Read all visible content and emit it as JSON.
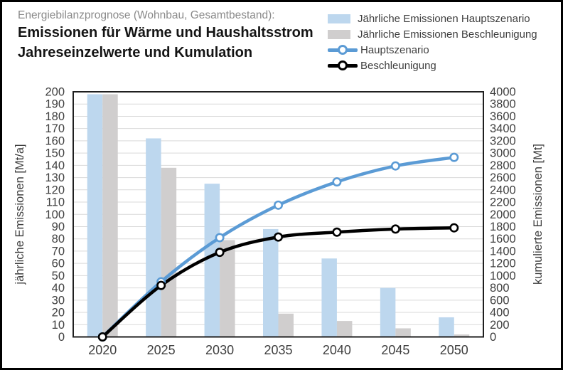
{
  "header": {
    "pretitle": "Energiebilanzprognose (Wohnbau, Gesamtbestand):",
    "title_line1": "Emissionen für Wärme und Haushaltsstrom",
    "title_line2": "Jahreseinzelwerte und Kumulation"
  },
  "legend": {
    "items": [
      {
        "type": "bar",
        "color": "#BDD7EE",
        "label": "Jährliche Emissionen Hauptszenario"
      },
      {
        "type": "bar",
        "color": "#D0CECE",
        "label": "Jährliche Emissionen Beschleunigung"
      },
      {
        "type": "line",
        "color": "#5B9BD5",
        "label": "Hauptszenario"
      },
      {
        "type": "line",
        "color": "#000000",
        "label": "Beschleunigung"
      }
    ]
  },
  "chart_data": {
    "type": "combo-bar-line",
    "categories": [
      "2020",
      "2025",
      "2030",
      "2035",
      "2040",
      "2045",
      "2050"
    ],
    "series": [
      {
        "name": "Jährliche Emissionen Hauptszenario",
        "type": "bar",
        "axis": "left",
        "color": "#BDD7EE",
        "values": [
          198,
          162,
          125,
          88,
          64,
          40,
          16
        ]
      },
      {
        "name": "Jährliche Emissionen Beschleunigung",
        "type": "bar",
        "axis": "left",
        "color": "#D0CECE",
        "values": [
          198,
          138,
          79,
          19,
          13,
          7,
          2
        ]
      },
      {
        "name": "Hauptszenario",
        "type": "line",
        "axis": "right",
        "color": "#5B9BD5",
        "values": [
          0,
          900,
          1620,
          2150,
          2530,
          2790,
          2930
        ]
      },
      {
        "name": "Beschleunigung",
        "type": "line",
        "axis": "right",
        "color": "#000000",
        "values": [
          0,
          840,
          1380,
          1630,
          1710,
          1760,
          1780
        ]
      }
    ],
    "left_axis": {
      "title": "jährliche Emissionen [Mt/a]",
      "min": 0,
      "max": 200,
      "step": 10
    },
    "right_axis": {
      "title": "kumulierte Emissionen [Mt]",
      "min": 0,
      "max": 4000,
      "step": 200
    },
    "grid": true,
    "legend_position": "top-right",
    "colors": {
      "gridline": "#D9D9D9",
      "plot_border": "#1f1f1f",
      "tick_label": "#3f3f3f",
      "axis_title": "#3f3f3f"
    }
  }
}
